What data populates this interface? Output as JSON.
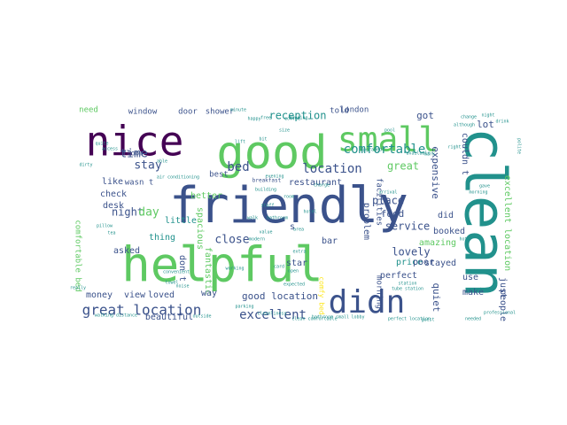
{
  "wordcloud": {
    "palette": [
      "#440154",
      "#3b528b",
      "#21918c",
      "#5ec962",
      "#fde725"
    ],
    "words": [
      {
        "text": "friendly",
        "color": "#3b528b"
      },
      {
        "text": "helpful",
        "color": "#5ec962"
      },
      {
        "text": "clean",
        "color": "#21918c"
      },
      {
        "text": "good",
        "color": "#5ec962"
      },
      {
        "text": "nice",
        "color": "#440154"
      },
      {
        "text": "small",
        "color": "#5ec962"
      },
      {
        "text": "didn",
        "color": "#3b528b"
      },
      {
        "text": "great location",
        "color": "#3b528b"
      },
      {
        "text": "comfortable",
        "color": "#21918c"
      },
      {
        "text": "location",
        "color": "#3b528b"
      },
      {
        "text": "reception",
        "color": "#21918c"
      },
      {
        "text": "bed",
        "color": "#3b528b"
      },
      {
        "text": "excellent",
        "color": "#3b528b"
      },
      {
        "text": "stay",
        "color": "#3b528b"
      },
      {
        "text": "time",
        "color": "#3b528b"
      },
      {
        "text": "great",
        "color": "#5ec962"
      },
      {
        "text": "night",
        "color": "#3b528b"
      },
      {
        "text": "day",
        "color": "#5ec962"
      },
      {
        "text": "close",
        "color": "#3b528b"
      },
      {
        "text": "lovely",
        "color": "#3b528b"
      },
      {
        "text": "service",
        "color": "#3b528b"
      },
      {
        "text": "good location",
        "color": "#3b528b"
      },
      {
        "text": "restaurant",
        "color": "#3b528b"
      },
      {
        "text": "place",
        "color": "#3b528b"
      },
      {
        "text": "food",
        "color": "#3b528b"
      },
      {
        "text": "booked",
        "color": "#3b528b"
      },
      {
        "text": "expensive",
        "color": "#3b528b"
      },
      {
        "text": "amazing",
        "color": "#5ec962"
      },
      {
        "text": "stayed",
        "color": "#3b528b"
      },
      {
        "text": "perfect",
        "color": "#3b528b"
      },
      {
        "text": "price",
        "color": "#21918c"
      },
      {
        "text": "poor",
        "color": "#3b528b"
      },
      {
        "text": "quiet",
        "color": "#3b528b"
      },
      {
        "text": "make",
        "color": "#3b528b"
      },
      {
        "text": "lot",
        "color": "#3b528b"
      },
      {
        "text": "got",
        "color": "#3b528b"
      },
      {
        "text": "couldn t",
        "color": "#3b528b"
      },
      {
        "text": "excellent location",
        "color": "#5ec962"
      },
      {
        "text": "just",
        "color": "#3b528b"
      },
      {
        "text": "people",
        "color": "#3b528b"
      },
      {
        "text": "use",
        "color": "#3b528b"
      },
      {
        "text": "did",
        "color": "#3b528b"
      },
      {
        "text": "bar",
        "color": "#3b528b"
      },
      {
        "text": "star",
        "color": "#3b528b"
      },
      {
        "text": "morning",
        "color": "#3b528b"
      },
      {
        "text": "problem",
        "color": "#3b528b"
      },
      {
        "text": "facilities",
        "color": "#3b528b"
      },
      {
        "text": "thing",
        "color": "#21918c"
      },
      {
        "text": "little",
        "color": "#21918c"
      },
      {
        "text": "check",
        "color": "#3b528b"
      },
      {
        "text": "desk",
        "color": "#3b528b"
      },
      {
        "text": "like",
        "color": "#3b528b"
      },
      {
        "text": "better",
        "color": "#5ec962"
      },
      {
        "text": "spacious",
        "color": "#5ec962"
      },
      {
        "text": "fantastic",
        "color": "#5ec962"
      },
      {
        "text": "don t",
        "color": "#3b528b"
      },
      {
        "text": "way",
        "color": "#3b528b"
      },
      {
        "text": "loved",
        "color": "#3b528b"
      },
      {
        "text": "view",
        "color": "#3b528b"
      },
      {
        "text": "money",
        "color": "#3b528b"
      },
      {
        "text": "asked",
        "color": "#3b528b"
      },
      {
        "text": "beautiful",
        "color": "#3b528b"
      },
      {
        "text": "comfortable bed",
        "color": "#5ec962"
      },
      {
        "text": "need",
        "color": "#5ec962"
      },
      {
        "text": "window",
        "color": "#3b528b"
      },
      {
        "text": "door",
        "color": "#3b528b"
      },
      {
        "text": "shower",
        "color": "#3b528b"
      },
      {
        "text": "told",
        "color": "#3b528b"
      },
      {
        "text": "london",
        "color": "#3b528b"
      },
      {
        "text": "wasn t",
        "color": "#3b528b"
      },
      {
        "text": "floor",
        "color": "#3b528b"
      },
      {
        "text": "best",
        "color": "#3b528b"
      },
      {
        "text": "s",
        "color": "#3b528b"
      },
      {
        "text": "comfy bed",
        "color": "#fde725"
      },
      {
        "text": "breakfast",
        "color": "#3b528b"
      },
      {
        "text": "clean comfortable",
        "color": "#21918c"
      },
      {
        "text": "building",
        "color": "#21918c"
      },
      {
        "text": "staff",
        "color": "#21918c"
      },
      {
        "text": "room",
        "color": "#21918c"
      },
      {
        "text": "hotel",
        "color": "#21918c"
      },
      {
        "text": "pillow",
        "color": "#21918c"
      },
      {
        "text": "tea",
        "color": "#21918c"
      },
      {
        "text": "walk",
        "color": "#21918c"
      },
      {
        "text": "value",
        "color": "#21918c"
      },
      {
        "text": "area",
        "color": "#21918c"
      },
      {
        "text": "bathroom",
        "color": "#21918c"
      },
      {
        "text": "coffee",
        "color": "#21918c"
      },
      {
        "text": "size",
        "color": "#21918c"
      },
      {
        "text": "tube station",
        "color": "#21918c"
      },
      {
        "text": "modern",
        "color": "#21918c"
      },
      {
        "text": "noise",
        "color": "#21918c"
      },
      {
        "text": "extra",
        "color": "#21918c"
      },
      {
        "text": "bit",
        "color": "#21918c"
      },
      {
        "text": "minute",
        "color": "#21918c"
      },
      {
        "text": "free",
        "color": "#21918c"
      },
      {
        "text": "lift",
        "color": "#21918c"
      },
      {
        "text": "change",
        "color": "#21918c"
      },
      {
        "text": "working",
        "color": "#21918c"
      },
      {
        "text": "outside",
        "color": "#21918c"
      },
      {
        "text": "parking",
        "color": "#21918c"
      },
      {
        "text": "perfect location",
        "color": "#21918c"
      },
      {
        "text": "needed",
        "color": "#21918c"
      },
      {
        "text": "morning",
        "color": "#21918c"
      },
      {
        "text": "upgraded",
        "color": "#21918c"
      },
      {
        "text": "available",
        "color": "#21918c"
      },
      {
        "text": "arrival",
        "color": "#21918c"
      },
      {
        "text": "walking distance",
        "color": "#21918c"
      },
      {
        "text": "lobby",
        "color": "#21918c"
      },
      {
        "text": "towel",
        "color": "#21918c"
      },
      {
        "text": "pool",
        "color": "#21918c"
      },
      {
        "text": "evening",
        "color": "#21918c"
      },
      {
        "text": "air conditioning",
        "color": "#21918c"
      },
      {
        "text": "happy",
        "color": "#21918c"
      },
      {
        "text": "booking",
        "color": "#21918c"
      },
      {
        "text": "expected",
        "color": "#21918c"
      },
      {
        "text": "convenient",
        "color": "#21918c"
      },
      {
        "text": "really",
        "color": "#21918c"
      },
      {
        "text": "station",
        "color": "#21918c"
      },
      {
        "text": "quite",
        "color": "#21918c"
      },
      {
        "text": "access",
        "color": "#21918c"
      },
      {
        "text": "card",
        "color": "#21918c"
      },
      {
        "text": "guest",
        "color": "#21918c"
      },
      {
        "text": "charge",
        "color": "#21918c"
      },
      {
        "text": "bathroom small",
        "color": "#21918c"
      },
      {
        "text": "cleanliness",
        "color": "#21918c"
      },
      {
        "text": "team",
        "color": "#21918c"
      },
      {
        "text": "night",
        "color": "#21918c"
      },
      {
        "text": "gave",
        "color": "#21918c"
      },
      {
        "text": "drink",
        "color": "#21918c"
      },
      {
        "text": "polite",
        "color": "#21918c"
      },
      {
        "text": "professional",
        "color": "#21918c"
      },
      {
        "text": "although",
        "color": "#21918c"
      },
      {
        "text": "mark",
        "color": "#21918c"
      },
      {
        "text": "right",
        "color": "#21918c"
      },
      {
        "text": "hot",
        "color": "#21918c"
      },
      {
        "text": "dirty",
        "color": "#21918c"
      },
      {
        "text": "able",
        "color": "#21918c"
      },
      {
        "text": "open",
        "color": "#21918c"
      },
      {
        "text": "good size",
        "color": "#21918c"
      }
    ]
  }
}
